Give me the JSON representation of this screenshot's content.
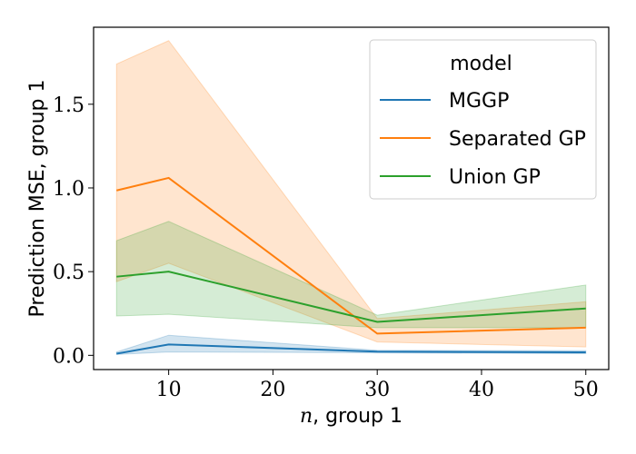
{
  "chart_data": {
    "type": "line",
    "xlabel_var": "n",
    "xlabel_rest": ", group 1",
    "ylabel": "Prediction MSE, group 1",
    "xlim": [
      2.8,
      52.2
    ],
    "ylim": [
      -0.085,
      1.96
    ],
    "xticks": [
      10,
      20,
      30,
      40,
      50
    ],
    "yticks": [
      0.0,
      0.5,
      1.0,
      1.5
    ],
    "ytick_labels": [
      "0.0",
      "0.5",
      "1.0",
      "1.5"
    ],
    "grid": false,
    "legend": {
      "title": "model",
      "placement": "top-right"
    },
    "x": [
      5,
      10,
      30,
      50
    ],
    "series": [
      {
        "name": "MGGP",
        "color": "#1f77b4",
        "values": [
          0.01,
          0.065,
          0.022,
          0.018
        ],
        "ci_low": [
          0.005,
          0.02,
          0.015,
          0.01
        ],
        "ci_high": [
          0.02,
          0.12,
          0.03,
          0.028
        ]
      },
      {
        "name": "Separated GP",
        "color": "#ff7f0e",
        "values": [
          0.985,
          1.06,
          0.13,
          0.165
        ],
        "ci_low": [
          0.44,
          0.55,
          0.08,
          0.05
        ],
        "ci_high": [
          1.74,
          1.88,
          0.22,
          0.32
        ]
      },
      {
        "name": "Union GP",
        "color": "#2ca02c",
        "values": [
          0.47,
          0.5,
          0.2,
          0.28
        ],
        "ci_low": [
          0.235,
          0.245,
          0.165,
          0.165
        ],
        "ci_high": [
          0.685,
          0.8,
          0.24,
          0.42
        ]
      }
    ]
  }
}
